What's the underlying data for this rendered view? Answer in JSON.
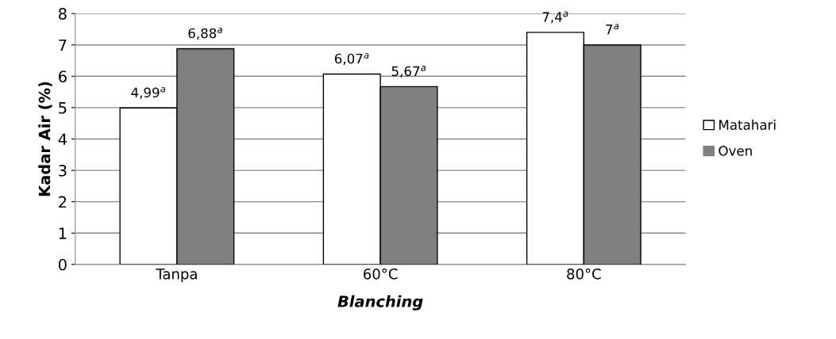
{
  "chart_data": {
    "type": "bar",
    "xlabel": "Blanching",
    "ylabel": "Kadar Air (%)",
    "categories": [
      "Tanpa",
      "60°C",
      "80°C"
    ],
    "series": [
      {
        "name": "Matahari",
        "color": "#ffffff",
        "values": [
          4.99,
          6.07,
          7.4
        ],
        "value_labels": [
          "4,99$^{a}$",
          "6,07$^{a}$",
          "7,4$^{a}$"
        ]
      },
      {
        "name": "Oven",
        "color": "#808080",
        "values": [
          6.88,
          5.67,
          7
        ],
        "value_labels": [
          "6,88$^{a}$",
          "5,67$^{a}$",
          "7$^{a}$"
        ]
      }
    ],
    "ylim": [
      0,
      8
    ],
    "yticks": [
      0,
      1,
      2,
      3,
      4,
      5,
      6,
      7,
      8
    ],
    "grid": "y",
    "legend": "right"
  }
}
